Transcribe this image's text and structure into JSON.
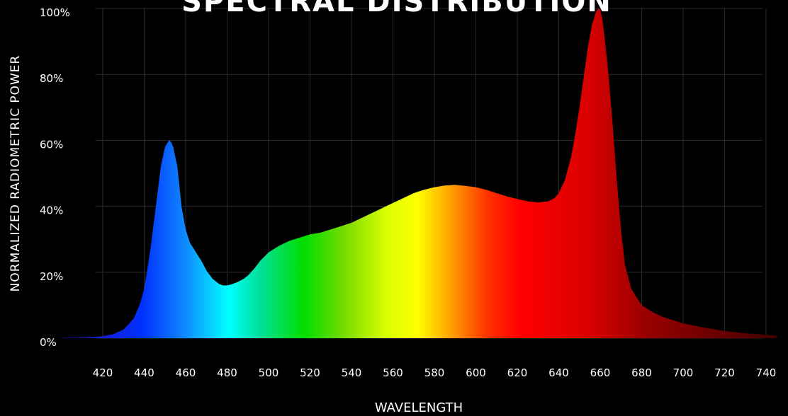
{
  "chart_data": {
    "type": "area",
    "title": "SPECTRAL DISTRIBUTION",
    "xlabel": "WAVELENGTH",
    "ylabel": "NORMALIZED  RADIOMETRIC  POWER",
    "xlim": [
      400,
      745
    ],
    "ylim": [
      0,
      100
    ],
    "xticks": [
      "420",
      "440",
      "460",
      "480",
      "500",
      "520",
      "540",
      "560",
      "580",
      "600",
      "620",
      "640",
      "660",
      "680",
      "700",
      "720",
      "740"
    ],
    "yticks": [
      "0%",
      "20%",
      "40%",
      "60%",
      "80%",
      "100%"
    ],
    "grid": true,
    "fill": "visible-spectrum gradient",
    "series": [
      {
        "x": [
          400,
          410,
          420,
          425,
          430,
          435,
          438,
          440,
          443,
          446,
          448,
          450,
          452,
          453,
          454,
          456,
          458,
          460,
          462,
          465,
          468,
          470,
          473,
          476,
          478,
          480,
          482,
          485,
          488,
          490,
          493,
          496,
          500,
          505,
          510,
          515,
          520,
          525,
          530,
          535,
          540,
          545,
          550,
          555,
          560,
          565,
          570,
          575,
          580,
          585,
          590,
          595,
          600,
          605,
          610,
          615,
          620,
          625,
          630,
          635,
          638,
          640,
          643,
          646,
          648,
          650,
          652,
          654,
          656,
          658,
          659,
          660,
          661,
          662,
          664,
          666,
          668,
          670,
          672,
          675,
          678,
          680,
          685,
          690,
          700,
          710,
          720,
          730,
          740,
          745
        ],
        "y": [
          0.1,
          0.2,
          0.6,
          1.2,
          2.6,
          6,
          10.5,
          15,
          27,
          42,
          52,
          58,
          60,
          59.5,
          58,
          52,
          40,
          33,
          29,
          26,
          23,
          20.5,
          18,
          16.5,
          16,
          16,
          16.3,
          17,
          18,
          19,
          21,
          23.5,
          26,
          28,
          29.5,
          30.5,
          31.5,
          32,
          33,
          34,
          35,
          36.5,
          38,
          39.5,
          41,
          42.5,
          44,
          45,
          45.8,
          46.3,
          46.5,
          46.2,
          45.8,
          45,
          44,
          43,
          42.2,
          41.5,
          41.2,
          41.5,
          42.5,
          44,
          48,
          55,
          62,
          70,
          79,
          88,
          95,
          99,
          100,
          99.5,
          97,
          92,
          80,
          65,
          48,
          33,
          22,
          15,
          12,
          10,
          8,
          6.5,
          4.5,
          3.2,
          2.2,
          1.5,
          1,
          0.8
        ]
      }
    ]
  }
}
